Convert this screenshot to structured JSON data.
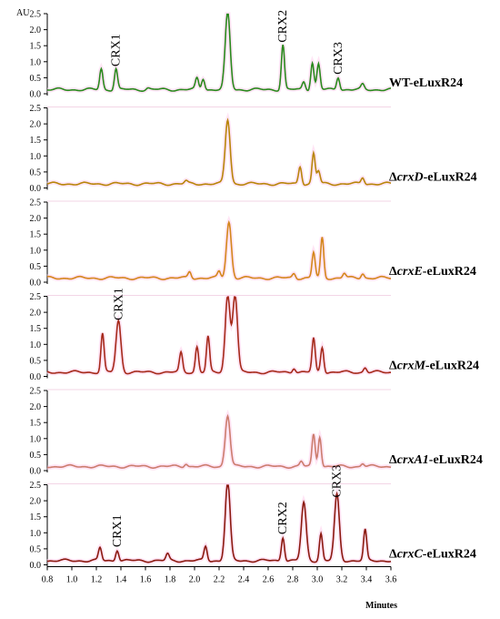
{
  "chart_data": {
    "type": "line",
    "title": "",
    "ylabel": "AU",
    "xlabel": "Minutes",
    "xlim": [
      0.8,
      3.6
    ],
    "ylim": [
      0,
      2.5
    ],
    "x_ticks": [
      "0.8",
      "1.0",
      "1.2",
      "1.4",
      "1.6",
      "1.8",
      "2.0",
      "2.2",
      "2.4",
      "2.6",
      "2.8",
      "3.0",
      "3.2",
      "3.4",
      "3.6"
    ],
    "y_ticks": [
      "0.0",
      "0.5",
      "1.0",
      "1.5",
      "2.0",
      "2.5"
    ],
    "grid": false,
    "legend": "none",
    "panels": [
      {
        "name_parts": [
          "WT-eLuxR24",
          "",
          ""
        ],
        "color": "#2a8a1e",
        "peaks": [
          [
            1.24,
            0.65
          ],
          [
            1.36,
            0.65
          ],
          [
            1.62,
            0.05
          ],
          [
            2.02,
            0.35
          ],
          [
            2.07,
            0.35
          ],
          [
            2.27,
            2.4
          ],
          [
            2.72,
            1.4
          ],
          [
            2.89,
            0.25
          ],
          [
            2.96,
            0.85
          ],
          [
            3.01,
            0.8
          ],
          [
            3.17,
            0.4
          ],
          [
            3.37,
            0.15
          ]
        ],
        "annotations": [
          {
            "text": "CRX1",
            "x": 1.36,
            "y": 0.85
          },
          {
            "text": "CRX2",
            "x": 2.72,
            "y": 1.6
          },
          {
            "text": "CRX3",
            "x": 3.17,
            "y": 0.6
          }
        ]
      },
      {
        "name_parts": [
          "Δ",
          "crxD",
          "-eLuxR24"
        ],
        "color": "#b8860b",
        "peaks": [
          [
            1.93,
            0.08
          ],
          [
            2.27,
            2.0
          ],
          [
            2.86,
            0.55
          ],
          [
            2.97,
            0.95
          ],
          [
            3.01,
            0.4
          ],
          [
            3.37,
            0.2
          ]
        ],
        "annotations": []
      },
      {
        "name_parts": [
          "Δ",
          "crxE",
          "-eLuxR24"
        ],
        "color": "#d4871c",
        "peaks": [
          [
            1.96,
            0.2
          ],
          [
            2.2,
            0.2
          ],
          [
            2.28,
            1.75
          ],
          [
            2.81,
            0.15
          ],
          [
            2.97,
            0.8
          ],
          [
            3.04,
            1.25
          ],
          [
            3.22,
            0.15
          ],
          [
            3.37,
            0.15
          ]
        ],
        "annotations": []
      },
      {
        "name_parts": [
          "Δ",
          "crxM",
          "-eLuxR24"
        ],
        "color": "#a52a1a",
        "peaks": [
          [
            1.25,
            1.2
          ],
          [
            1.38,
            1.6
          ],
          [
            1.89,
            0.6
          ],
          [
            2.02,
            0.8
          ],
          [
            2.11,
            1.1
          ],
          [
            2.27,
            2.4
          ],
          [
            2.33,
            2.4
          ],
          [
            2.81,
            0.15
          ],
          [
            2.97,
            1.05
          ],
          [
            3.04,
            0.8
          ],
          [
            3.39,
            0.15
          ]
        ],
        "annotations": [
          {
            "text": "CRX1",
            "x": 1.38,
            "y": 1.75
          }
        ]
      },
      {
        "name_parts": [
          "Δ",
          "crxA1",
          "-eLuxR24"
        ],
        "color": "#cc7d6e",
        "peaks": [
          [
            1.93,
            0.1
          ],
          [
            2.27,
            1.6
          ],
          [
            2.87,
            0.15
          ],
          [
            2.97,
            1.0
          ],
          [
            3.02,
            0.95
          ],
          [
            3.37,
            0.1
          ]
        ],
        "annotations": []
      },
      {
        "name_parts": [
          "Δ",
          "crxC",
          "-eLuxR24"
        ],
        "color": "#8b1a10",
        "peaks": [
          [
            1.23,
            0.4
          ],
          [
            1.37,
            0.35
          ],
          [
            1.78,
            0.2
          ],
          [
            2.09,
            0.45
          ],
          [
            2.27,
            2.45
          ],
          [
            2.72,
            0.75
          ],
          [
            2.89,
            1.8
          ],
          [
            3.03,
            0.85
          ],
          [
            3.16,
            2.05
          ],
          [
            3.39,
            0.95
          ]
        ],
        "annotations": [
          {
            "text": "CRX1",
            "x": 1.37,
            "y": 0.55
          },
          {
            "text": "CRX2",
            "x": 2.72,
            "y": 0.95
          },
          {
            "text": "CRX3",
            "x": 3.16,
            "y": 2.1
          }
        ]
      }
    ]
  }
}
